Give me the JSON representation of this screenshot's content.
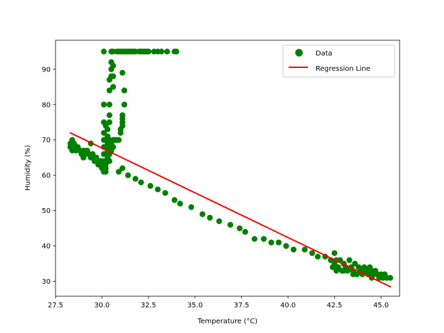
{
  "chart_data": {
    "type": "scatter",
    "xlabel": "Temperature (°C)",
    "ylabel": "Humidity (%)",
    "xlim": [
      27.5,
      46.0
    ],
    "ylim": [
      25.8,
      98.2
    ],
    "x_ticks": [
      27.5,
      30.0,
      32.5,
      35.0,
      37.5,
      40.0,
      42.5,
      45.0
    ],
    "x_tick_labels": [
      "27.5",
      "30.0",
      "32.5",
      "35.0",
      "37.5",
      "40.0",
      "42.5",
      "45.0"
    ],
    "y_ticks": [
      30,
      40,
      50,
      60,
      70,
      80,
      90
    ],
    "y_tick_labels": [
      "30",
      "40",
      "50",
      "60",
      "70",
      "80",
      "90"
    ],
    "grid": false,
    "legend_position": "top-right",
    "colors": {
      "data": "#008000",
      "regression": "#ff0000"
    },
    "series": [
      {
        "name": "Data",
        "type": "scatter",
        "points": [
          [
            28.3,
            69
          ],
          [
            28.3,
            68
          ],
          [
            28.4,
            70
          ],
          [
            28.4,
            67
          ],
          [
            28.5,
            69
          ],
          [
            28.5,
            68
          ],
          [
            28.6,
            67
          ],
          [
            28.7,
            68
          ],
          [
            28.8,
            67
          ],
          [
            28.9,
            66
          ],
          [
            29.0,
            67
          ],
          [
            29.0,
            65
          ],
          [
            29.1,
            66
          ],
          [
            29.2,
            67
          ],
          [
            29.3,
            66
          ],
          [
            29.4,
            65
          ],
          [
            29.4,
            69
          ],
          [
            29.5,
            65
          ],
          [
            29.5,
            66
          ],
          [
            29.6,
            64
          ],
          [
            29.7,
            65
          ],
          [
            29.8,
            64
          ],
          [
            29.8,
            63
          ],
          [
            29.9,
            64
          ],
          [
            29.9,
            63
          ],
          [
            30.0,
            64
          ],
          [
            30.0,
            63
          ],
          [
            30.0,
            62
          ],
          [
            30.1,
            62
          ],
          [
            30.1,
            61
          ],
          [
            30.1,
            64
          ],
          [
            30.2,
            63
          ],
          [
            30.2,
            62
          ],
          [
            30.2,
            61
          ],
          [
            30.1,
            66
          ],
          [
            30.1,
            68
          ],
          [
            30.1,
            70
          ],
          [
            30.1,
            72
          ],
          [
            30.1,
            75
          ],
          [
            30.1,
            80
          ],
          [
            30.2,
            74
          ],
          [
            30.2,
            68
          ],
          [
            30.2,
            66
          ],
          [
            30.2,
            70
          ],
          [
            30.3,
            65
          ],
          [
            30.3,
            67
          ],
          [
            30.3,
            69
          ],
          [
            30.3,
            71
          ],
          [
            30.3,
            73
          ],
          [
            30.4,
            64
          ],
          [
            30.4,
            66
          ],
          [
            30.4,
            68
          ],
          [
            30.4,
            70
          ],
          [
            30.4,
            75
          ],
          [
            30.4,
            77
          ],
          [
            30.4,
            80
          ],
          [
            30.4,
            84
          ],
          [
            30.4,
            87
          ],
          [
            30.5,
            88
          ],
          [
            30.5,
            90
          ],
          [
            30.5,
            92
          ],
          [
            30.5,
            67
          ],
          [
            30.5,
            69
          ],
          [
            30.6,
            68
          ],
          [
            30.6,
            70
          ],
          [
            30.6,
            85
          ],
          [
            30.6,
            88
          ],
          [
            30.6,
            91
          ],
          [
            30.7,
            70
          ],
          [
            30.8,
            70
          ],
          [
            30.9,
            70
          ],
          [
            31.0,
            72
          ],
          [
            31.0,
            73
          ],
          [
            31.1,
            74
          ],
          [
            31.1,
            75
          ],
          [
            31.1,
            76
          ],
          [
            31.1,
            77
          ],
          [
            31.1,
            89
          ],
          [
            31.2,
            80
          ],
          [
            31.2,
            84
          ],
          [
            30.9,
            61
          ],
          [
            31.1,
            62
          ],
          [
            30.1,
            95
          ],
          [
            30.5,
            95
          ],
          [
            30.6,
            95
          ],
          [
            30.8,
            95
          ],
          [
            30.9,
            95
          ],
          [
            31.0,
            95
          ],
          [
            31.1,
            95
          ],
          [
            31.2,
            95
          ],
          [
            31.3,
            95
          ],
          [
            31.4,
            95
          ],
          [
            31.5,
            95
          ],
          [
            31.6,
            95
          ],
          [
            31.7,
            95
          ],
          [
            31.8,
            95
          ],
          [
            32.0,
            95
          ],
          [
            32.1,
            95
          ],
          [
            32.2,
            95
          ],
          [
            32.3,
            95
          ],
          [
            32.4,
            95
          ],
          [
            32.5,
            95
          ],
          [
            32.8,
            95
          ],
          [
            33.0,
            95
          ],
          [
            33.2,
            95
          ],
          [
            33.5,
            95
          ],
          [
            33.9,
            95
          ],
          [
            34.0,
            95
          ],
          [
            31.4,
            60
          ],
          [
            31.8,
            59
          ],
          [
            32.1,
            58
          ],
          [
            32.6,
            57
          ],
          [
            33.0,
            56
          ],
          [
            33.4,
            55
          ],
          [
            33.9,
            53
          ],
          [
            34.2,
            52
          ],
          [
            34.8,
            51
          ],
          [
            35.4,
            49
          ],
          [
            35.8,
            48
          ],
          [
            36.3,
            47
          ],
          [
            36.9,
            46
          ],
          [
            37.4,
            45
          ],
          [
            37.7,
            44
          ],
          [
            38.2,
            42
          ],
          [
            38.7,
            42
          ],
          [
            39.1,
            41
          ],
          [
            39.5,
            41
          ],
          [
            39.9,
            40
          ],
          [
            40.3,
            39
          ],
          [
            40.9,
            39
          ],
          [
            41.3,
            38
          ],
          [
            41.6,
            37
          ],
          [
            42.0,
            37
          ],
          [
            42.5,
            38
          ],
          [
            42.3,
            36
          ],
          [
            42.4,
            34
          ],
          [
            42.5,
            35
          ],
          [
            42.6,
            33
          ],
          [
            42.7,
            34
          ],
          [
            42.8,
            36
          ],
          [
            42.9,
            33
          ],
          [
            43.0,
            35
          ],
          [
            43.1,
            34
          ],
          [
            43.2,
            33
          ],
          [
            43.3,
            36
          ],
          [
            43.4,
            34
          ],
          [
            43.5,
            33
          ],
          [
            43.6,
            35
          ],
          [
            43.7,
            32
          ],
          [
            43.8,
            34
          ],
          [
            43.9,
            33
          ],
          [
            44.0,
            32
          ],
          [
            44.1,
            34
          ],
          [
            44.2,
            33
          ],
          [
            44.3,
            32
          ],
          [
            44.4,
            34
          ],
          [
            44.5,
            33
          ],
          [
            44.6,
            32
          ],
          [
            44.7,
            33
          ],
          [
            44.8,
            32
          ],
          [
            44.9,
            31
          ],
          [
            45.0,
            32
          ],
          [
            45.1,
            31
          ],
          [
            45.2,
            32
          ],
          [
            45.3,
            31
          ],
          [
            45.5,
            31
          ],
          [
            42.6,
            36
          ],
          [
            43.0,
            33
          ],
          [
            43.5,
            32
          ],
          [
            44.0,
            33
          ],
          [
            44.5,
            31
          ]
        ]
      },
      {
        "name": "Regression Line",
        "type": "line",
        "points": [
          [
            28.3,
            72.0
          ],
          [
            45.5,
            28.5
          ]
        ]
      }
    ]
  }
}
